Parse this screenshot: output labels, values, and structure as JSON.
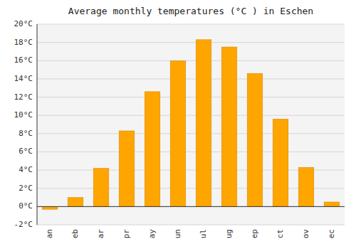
{
  "chart_data": {
    "type": "bar",
    "title": "Average monthly temperatures (°C ) in Eschen",
    "categories": [
      "an",
      "eb",
      "ar",
      "pr",
      "ay",
      "un",
      "ul",
      "ug",
      "ep",
      "ct",
      "ov",
      "ec"
    ],
    "values": [
      -0.3,
      1.0,
      4.2,
      8.3,
      12.6,
      16.0,
      18.3,
      17.5,
      14.6,
      9.6,
      4.3,
      0.5
    ],
    "color": "#FFA500",
    "ylim": [
      -2,
      20
    ],
    "yticks": [
      {
        "value": -2,
        "label": "-2°C"
      },
      {
        "value": 0,
        "label": "0°C"
      },
      {
        "value": 2,
        "label": "2°C"
      },
      {
        "value": 4,
        "label": "4°C"
      },
      {
        "value": 6,
        "label": "6°C"
      },
      {
        "value": 8,
        "label": "8°C"
      },
      {
        "value": 10,
        "label": "10°C"
      },
      {
        "value": 12,
        "label": "12°C"
      },
      {
        "value": 14,
        "label": "14°C"
      },
      {
        "value": 16,
        "label": "16°C"
      },
      {
        "value": 18,
        "label": "18°C"
      },
      {
        "value": 20,
        "label": "20°C"
      }
    ],
    "grid": true
  }
}
